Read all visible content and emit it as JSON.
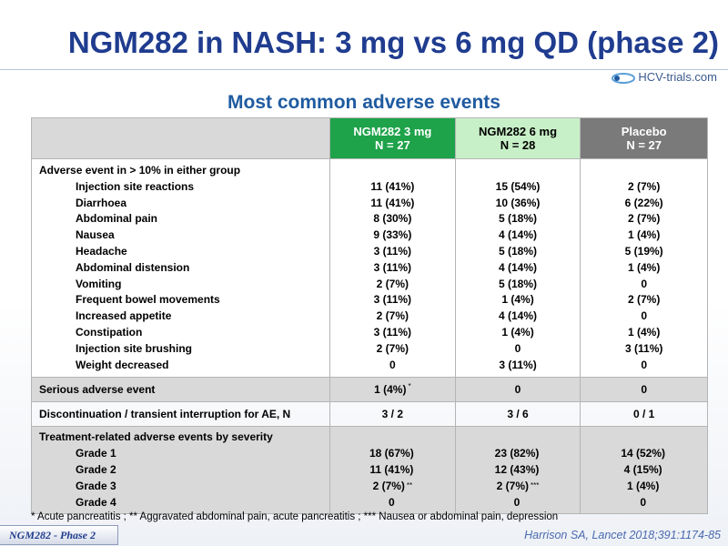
{
  "title": "NGM282 in NASH: 3 mg vs 6 mg QD (phase 2)",
  "logo_text": "HCV-trials.com",
  "subtitle": "Most common adverse events",
  "columns": [
    {
      "name": "NGM282 3 mg",
      "n": "N = 27"
    },
    {
      "name": "NGM282 6 mg",
      "n": "N = 28"
    },
    {
      "name": "Placebo",
      "n": "N = 27"
    }
  ],
  "ae_section": {
    "heading": "Adverse event in > 10% in either group",
    "rows": [
      {
        "label": "Injection site reactions",
        "values": [
          "11 (41%)",
          "15 (54%)",
          "2 (7%)"
        ]
      },
      {
        "label": "Diarrhoea",
        "values": [
          "11 (41%)",
          "10 (36%)",
          "6 (22%)"
        ]
      },
      {
        "label": "Abdominal pain",
        "values": [
          "8 (30%)",
          "5 (18%)",
          "2 (7%)"
        ]
      },
      {
        "label": "Nausea",
        "values": [
          "9 (33%)",
          "4 (14%)",
          "1 (4%)"
        ]
      },
      {
        "label": "Headache",
        "values": [
          "3 (11%)",
          "5 (18%)",
          "5 (19%)"
        ]
      },
      {
        "label": "Abdominal distension",
        "values": [
          "3 (11%)",
          "4 (14%)",
          "1 (4%)"
        ]
      },
      {
        "label": "Vomiting",
        "values": [
          "2 (7%)",
          "5 (18%)",
          "0"
        ]
      },
      {
        "label": "Frequent bowel movements",
        "values": [
          "3 (11%)",
          "1 (4%)",
          "2 (7%)"
        ]
      },
      {
        "label": "Increased appetite",
        "values": [
          "2 (7%)",
          "4 (14%)",
          "0"
        ]
      },
      {
        "label": "Constipation",
        "values": [
          "3 (11%)",
          "1 (4%)",
          "1 (4%)"
        ]
      },
      {
        "label": "Injection site brushing",
        "values": [
          "2 (7%)",
          "0",
          "3 (11%)"
        ]
      },
      {
        "label": "Weight decreased",
        "values": [
          "0",
          "3 (11%)",
          "0"
        ]
      }
    ]
  },
  "serious": {
    "label": "Serious adverse event",
    "values": [
      "1 (4%)",
      "0",
      "0"
    ],
    "footnote_mark": "*"
  },
  "discontinuation": {
    "label": "Discontinuation / transient interruption for AE, N",
    "values": [
      "3 / 2",
      "3 / 6",
      "0 / 1"
    ]
  },
  "severity_section": {
    "heading": "Treatment-related adverse events by severity",
    "rows": [
      {
        "label": "Grade 1",
        "values": [
          "18 (67%)",
          "23 (82%)",
          "14 (52%)"
        ],
        "marks": [
          "",
          "",
          ""
        ]
      },
      {
        "label": "Grade 2",
        "values": [
          "11 (41%)",
          "12 (43%)",
          "4 (15%)"
        ],
        "marks": [
          "",
          "",
          ""
        ]
      },
      {
        "label": "Grade 3",
        "values": [
          "2 (7%)",
          "2 (7%)",
          "1 (4%)"
        ],
        "marks": [
          "**",
          "***",
          ""
        ]
      },
      {
        "label": "Grade 4",
        "values": [
          "0",
          "0",
          "0"
        ],
        "marks": [
          "",
          "",
          ""
        ]
      }
    ]
  },
  "footnote": "* Acute pancreatitis ; **  Aggravated abdominal pain, acute pancreatitis ; *** Nausea or abdominal pain, depression",
  "badge": "NGM282 - Phase 2",
  "citation": "Harrison SA, Lancet 2018;391:1174-85",
  "colors": {
    "title": "#1f3c8f",
    "subtitle": "#1f5ba0",
    "col_3mg": "#1ea24a",
    "col_6mg": "#c8f0c8",
    "col_placebo": "#7a7a7a",
    "section_grey": "#d9d9d9"
  }
}
